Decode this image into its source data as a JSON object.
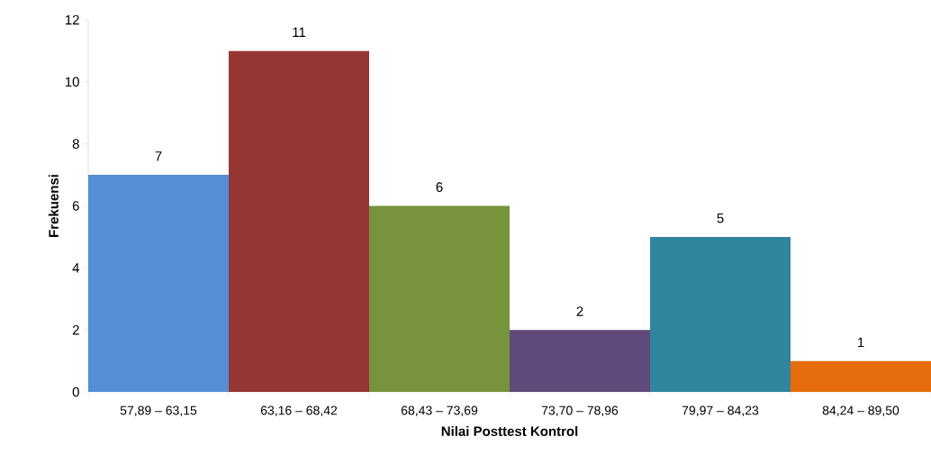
{
  "chart_data": {
    "type": "bar",
    "xlabel": "Nilai Posttest Kontrol",
    "ylabel": "Frekuensi",
    "categories": [
      "57,89 – 63,15",
      "63,16 – 68,42",
      "68,43 – 73,69",
      "73,70 – 78,96",
      "79,97 – 84,23",
      "84,24 – 89,50"
    ],
    "values": [
      7,
      11,
      6,
      2,
      5,
      1
    ],
    "colors": [
      "#558ed5",
      "#953735",
      "#77933c",
      "#604a7b",
      "#31859c",
      "#e46c0a"
    ],
    "ylim": [
      0,
      12
    ],
    "yticks": [
      0,
      2,
      4,
      6,
      8,
      10,
      12
    ],
    "data_labels": true,
    "grid": false
  }
}
